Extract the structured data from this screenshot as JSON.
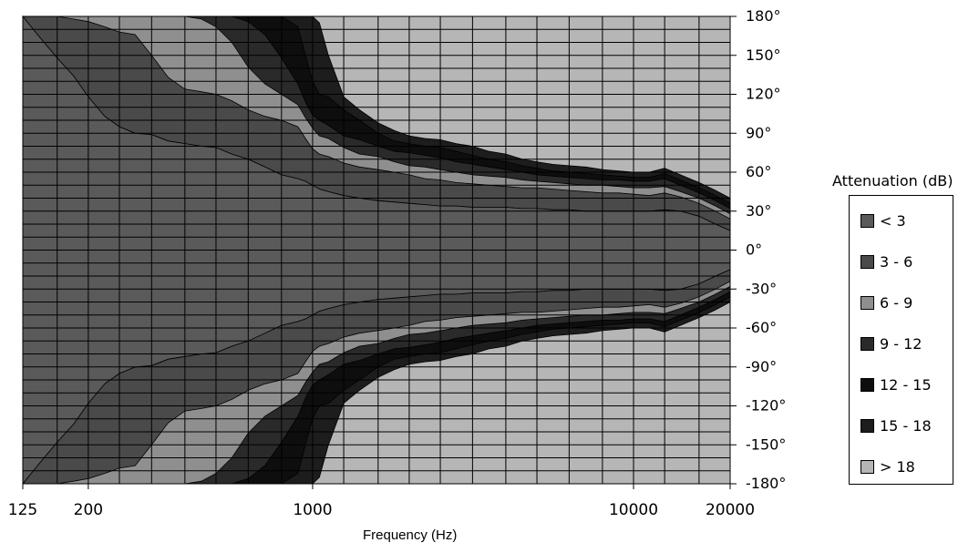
{
  "colors": {
    "band_less3": "#5a5a5a",
    "band_3_6": "#4a4a4a",
    "band_6_9": "#8f8f8f",
    "band_9_12": "#2a2a2a",
    "band_12_15": "#0e0e0e",
    "band_15_18": "#1d1d1d",
    "band_gt18": "#b6b6b6",
    "grid": "#000000"
  },
  "chart_data": {
    "type": "heatmap",
    "subtype": "filled-contour (directivity map)",
    "xlabel": "Frequency (Hz)",
    "x_scale": "log",
    "xlim": [
      125,
      20000
    ],
    "x_ticks": [
      {
        "value": 125,
        "label": "125"
      },
      {
        "value": 200,
        "label": "200"
      },
      {
        "value": 1000,
        "label": "1000"
      },
      {
        "value": 10000,
        "label": "10000"
      },
      {
        "value": 20000,
        "label": "20000"
      }
    ],
    "x_gridlines": [
      125,
      160,
      200,
      250,
      315,
      400,
      500,
      630,
      800,
      1000,
      1250,
      1600,
      2000,
      2500,
      3150,
      4000,
      5000,
      6300,
      8000,
      10000,
      12500,
      16000,
      20000
    ],
    "ylim": [
      -180,
      180
    ],
    "y_ticks": [
      {
        "value": 180,
        "label": "180°"
      },
      {
        "value": 150,
        "label": "150°"
      },
      {
        "value": 120,
        "label": "120°"
      },
      {
        "value": 90,
        "label": "90°"
      },
      {
        "value": 60,
        "label": "60°"
      },
      {
        "value": 30,
        "label": "30°"
      },
      {
        "value": 0,
        "label": "0°"
      },
      {
        "value": -30,
        "label": "-30°"
      },
      {
        "value": -60,
        "label": "-60°"
      },
      {
        "value": -90,
        "label": "-90°"
      },
      {
        "value": -120,
        "label": "-120°"
      },
      {
        "value": -150,
        "label": "-150°"
      },
      {
        "value": -180,
        "label": "-180°"
      }
    ],
    "y_grid_step": 10,
    "legend": {
      "title": "Attenuation (dB)",
      "position": "right",
      "entries": [
        {
          "label": "< 3",
          "color_key": "band_less3"
        },
        {
          "label": "3 - 6",
          "color_key": "band_3_6"
        },
        {
          "label": "6 - 9",
          "color_key": "band_6_9"
        },
        {
          "label": "9 - 12",
          "color_key": "band_9_12"
        },
        {
          "label": "12 - 15",
          "color_key": "band_12_15"
        },
        {
          "label": "15 - 18",
          "color_key": "band_15_18"
        },
        {
          "label": "> 18",
          "color_key": "band_gt18"
        }
      ]
    },
    "symmetric": true,
    "frequencies": [
      125,
      140,
      160,
      180,
      200,
      225,
      250,
      280,
      315,
      355,
      400,
      450,
      500,
      560,
      630,
      710,
      800,
      900,
      950,
      1000,
      1050,
      1120,
      1250,
      1400,
      1600,
      1800,
      2000,
      2240,
      2500,
      2800,
      3150,
      3550,
      4000,
      4500,
      5000,
      5600,
      6300,
      7100,
      8000,
      9000,
      10000,
      11200,
      12500,
      14000,
      16000,
      18000,
      20000
    ],
    "contour_boundaries": [
      {
        "level_db": 3,
        "angle_deg": [
          180,
          165,
          148,
          134,
          118,
          103,
          95,
          90,
          89,
          84,
          82,
          80,
          79,
          74,
          70,
          64,
          58,
          55,
          53,
          50,
          47,
          45,
          42,
          40,
          38,
          37,
          36,
          35,
          34,
          34,
          33,
          33,
          33,
          32,
          32,
          31,
          31,
          30,
          30,
          30,
          30,
          30,
          31,
          30,
          26,
          20,
          15
        ]
      },
      {
        "level_db": 6,
        "angle_deg": [
          180,
          180,
          180,
          178,
          176,
          172,
          168,
          166,
          150,
          133,
          124,
          122,
          120,
          115,
          108,
          103,
          100,
          95,
          86,
          78,
          74,
          72,
          67,
          64,
          62,
          60,
          58,
          55,
          54,
          52,
          51,
          50,
          49,
          48,
          48,
          47,
          46,
          45,
          44,
          44,
          43,
          42,
          44,
          41,
          36,
          30,
          24
        ]
      },
      {
        "level_db": 9,
        "angle_deg": [
          180,
          180,
          180,
          180,
          180,
          180,
          180,
          180,
          180,
          180,
          180,
          178,
          172,
          160,
          141,
          128,
          120,
          112,
          102,
          94,
          88,
          86,
          79,
          74,
          72,
          68,
          65,
          64,
          62,
          60,
          58,
          57,
          56,
          54,
          53,
          52,
          51,
          50,
          50,
          49,
          48,
          48,
          49,
          45,
          40,
          34,
          28
        ]
      },
      {
        "level_db": 12,
        "angle_deg": [
          180,
          180,
          180,
          180,
          180,
          180,
          180,
          180,
          180,
          180,
          180,
          180,
          180,
          180,
          176,
          166,
          148,
          128,
          114,
          104,
          100,
          96,
          88,
          85,
          80,
          76,
          75,
          73,
          71,
          68,
          66,
          64,
          62,
          60,
          58,
          57,
          56,
          55,
          54,
          54,
          53,
          53,
          55,
          50,
          44,
          38,
          32
        ]
      },
      {
        "level_db": 15,
        "angle_deg": [
          180,
          180,
          180,
          180,
          180,
          180,
          180,
          180,
          180,
          180,
          180,
          180,
          180,
          180,
          180,
          180,
          180,
          172,
          150,
          130,
          120,
          118,
          108,
          100,
          90,
          84,
          82,
          80,
          79,
          76,
          73,
          70,
          68,
          65,
          63,
          61,
          60,
          59,
          58,
          57,
          56,
          56,
          59,
          54,
          48,
          42,
          36
        ]
      },
      {
        "level_db": 18,
        "angle_deg": [
          180,
          180,
          180,
          180,
          180,
          180,
          180,
          180,
          180,
          180,
          180,
          180,
          180,
          180,
          180,
          180,
          180,
          180,
          180,
          180,
          175,
          150,
          118,
          108,
          98,
          92,
          88,
          86,
          85,
          82,
          80,
          76,
          74,
          70,
          68,
          66,
          65,
          64,
          62,
          61,
          60,
          60,
          63,
          58,
          52,
          46,
          40
        ]
      }
    ]
  }
}
